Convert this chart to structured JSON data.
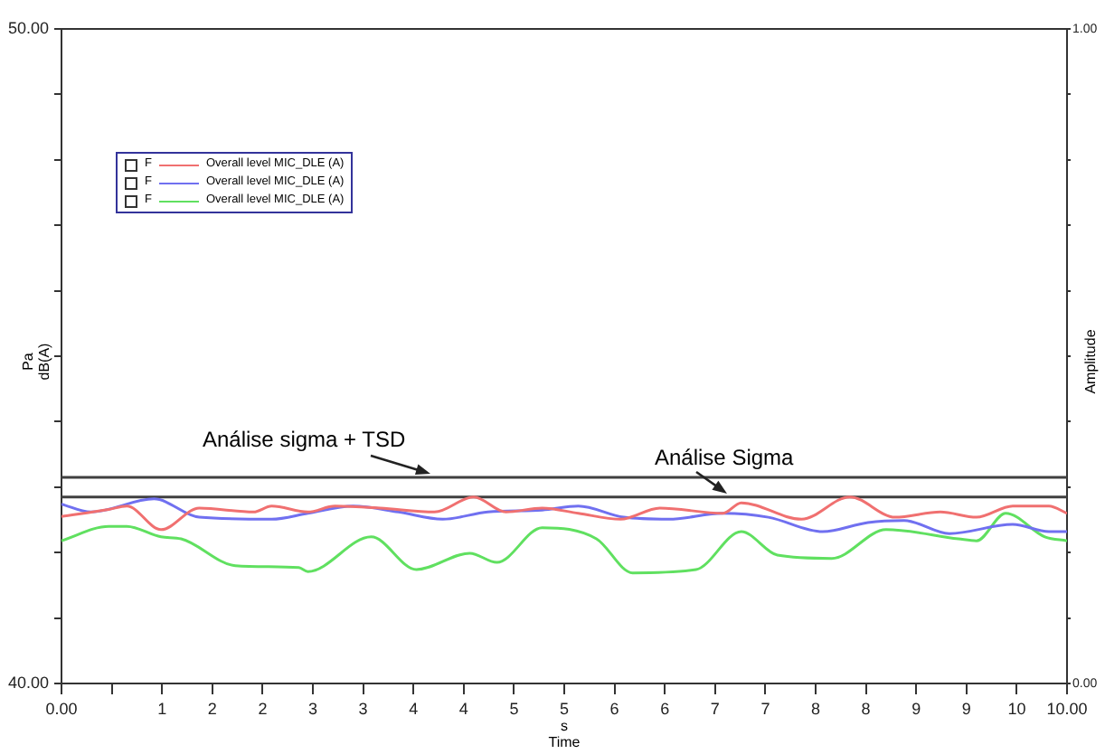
{
  "chart_data": {
    "type": "line",
    "xlabel": "s\nTime",
    "ylabel": "Pa\ndB(A)",
    "y2label": "Amplitude",
    "xlim": [
      0,
      10
    ],
    "xticks": [
      {
        "value": 0,
        "label": "0.00"
      },
      {
        "value": 0.5,
        "label": null
      },
      {
        "value": 1,
        "label": "1"
      },
      {
        "value": 1.5,
        "label": "2"
      },
      {
        "value": 2,
        "label": "2"
      },
      {
        "value": 2.5,
        "label": "3"
      },
      {
        "value": 3,
        "label": "3"
      },
      {
        "value": 3.5,
        "label": "4"
      },
      {
        "value": 4,
        "label": "4"
      },
      {
        "value": 4.5,
        "label": "5"
      },
      {
        "value": 5,
        "label": "5"
      },
      {
        "value": 5.5,
        "label": "6"
      },
      {
        "value": 6,
        "label": "6"
      },
      {
        "value": 6.5,
        "label": "7"
      },
      {
        "value": 7,
        "label": "7"
      },
      {
        "value": 7.5,
        "label": "8"
      },
      {
        "value": 8,
        "label": "8"
      },
      {
        "value": 8.5,
        "label": "9"
      },
      {
        "value": 9,
        "label": "9"
      },
      {
        "value": 9.5,
        "label": "10"
      },
      {
        "value": 10,
        "label": "10.00"
      }
    ],
    "ylim": [
      40,
      50
    ],
    "yticks": [
      {
        "value": 40,
        "label": "40.00"
      },
      {
        "value": 41,
        "label": null
      },
      {
        "value": 42,
        "label": null
      },
      {
        "value": 43,
        "label": null
      },
      {
        "value": 44,
        "label": null
      },
      {
        "value": 45,
        "label": null
      },
      {
        "value": 46,
        "label": null
      },
      {
        "value": 47,
        "label": null
      },
      {
        "value": 48,
        "label": null
      },
      {
        "value": 49,
        "label": null
      },
      {
        "value": 50,
        "label": "50.00"
      }
    ],
    "y2lim": [
      0,
      1
    ],
    "y2ticks": [
      {
        "value": 0,
        "label": "0.00"
      },
      {
        "value": 0.1,
        "label": null
      },
      {
        "value": 0.2,
        "label": null
      },
      {
        "value": 0.3,
        "label": null
      },
      {
        "value": 0.4,
        "label": null
      },
      {
        "value": 0.5,
        "label": null
      },
      {
        "value": 0.6,
        "label": null
      },
      {
        "value": 0.7,
        "label": null
      },
      {
        "value": 0.8,
        "label": null
      },
      {
        "value": 0.9,
        "label": null
      },
      {
        "value": 1,
        "label": "1.00"
      }
    ],
    "grid": false,
    "legend": "top left",
    "marker": "none",
    "line_style": "solid",
    "annotations": [
      "F",
      "F",
      "F"
    ],
    "ref_lines": [
      {
        "axis": "y",
        "value": 43.15,
        "label": "Análise sigma + TSD",
        "color": "#404040"
      },
      {
        "axis": "y",
        "value": 42.85,
        "label": "Análise Sigma",
        "color": "#404040"
      }
    ],
    "series": [
      {
        "name": "Overall level MIC_DLE (A)",
        "color": "#f07070",
        "x": [
          0,
          0.47,
          0.65,
          0.99,
          1.37,
          1.91,
          2.09,
          2.45,
          2.72,
          3.17,
          3.71,
          4.1,
          4.42,
          4.78,
          5.14,
          5.56,
          5.95,
          6.58,
          6.76,
          7.36,
          7.84,
          8.29,
          8.74,
          9.1,
          9.46,
          9.82,
          10
        ],
        "values": [
          42.55,
          42.66,
          42.71,
          42.35,
          42.68,
          42.62,
          42.71,
          42.62,
          42.71,
          42.68,
          42.62,
          42.85,
          42.62,
          42.68,
          42.6,
          42.51,
          42.68,
          42.6,
          42.76,
          42.51,
          42.85,
          42.54,
          42.62,
          42.54,
          42.71,
          42.71,
          42.6
        ]
      },
      {
        "name": "Overall level MIC_DLE (A)",
        "color": "#7070f0",
        "x": [
          0,
          0.29,
          0.92,
          1.37,
          2.09,
          2.45,
          2.9,
          3.35,
          3.79,
          4.24,
          4.78,
          5.14,
          5.59,
          6.04,
          6.58,
          7.03,
          7.57,
          8.02,
          8.38,
          8.83,
          9.46,
          9.82,
          10
        ],
        "values": [
          42.74,
          42.62,
          42.82,
          42.54,
          42.51,
          42.6,
          42.71,
          42.62,
          42.51,
          42.62,
          42.65,
          42.71,
          42.54,
          42.51,
          42.6,
          42.54,
          42.32,
          42.46,
          42.49,
          42.29,
          42.43,
          42.32,
          42.32
        ]
      },
      {
        "name": "Overall level MIC_DLE (A)",
        "color": "#60e060",
        "x": [
          0,
          0.47,
          0.65,
          0.99,
          1.19,
          1.73,
          2.36,
          2.45,
          3.08,
          3.53,
          4.06,
          4.33,
          4.78,
          5.32,
          5.68,
          6.31,
          6.76,
          7.12,
          7.66,
          8.2,
          8.92,
          9.1,
          9.39,
          9.78,
          10
        ],
        "values": [
          42.18,
          42.4,
          42.4,
          42.24,
          42.21,
          41.8,
          41.77,
          41.71,
          42.24,
          41.74,
          41.99,
          41.85,
          42.38,
          42.21,
          41.69,
          41.74,
          42.32,
          41.96,
          41.91,
          42.35,
          42.21,
          42.18,
          42.6,
          42.24,
          42.18
        ]
      }
    ]
  }
}
